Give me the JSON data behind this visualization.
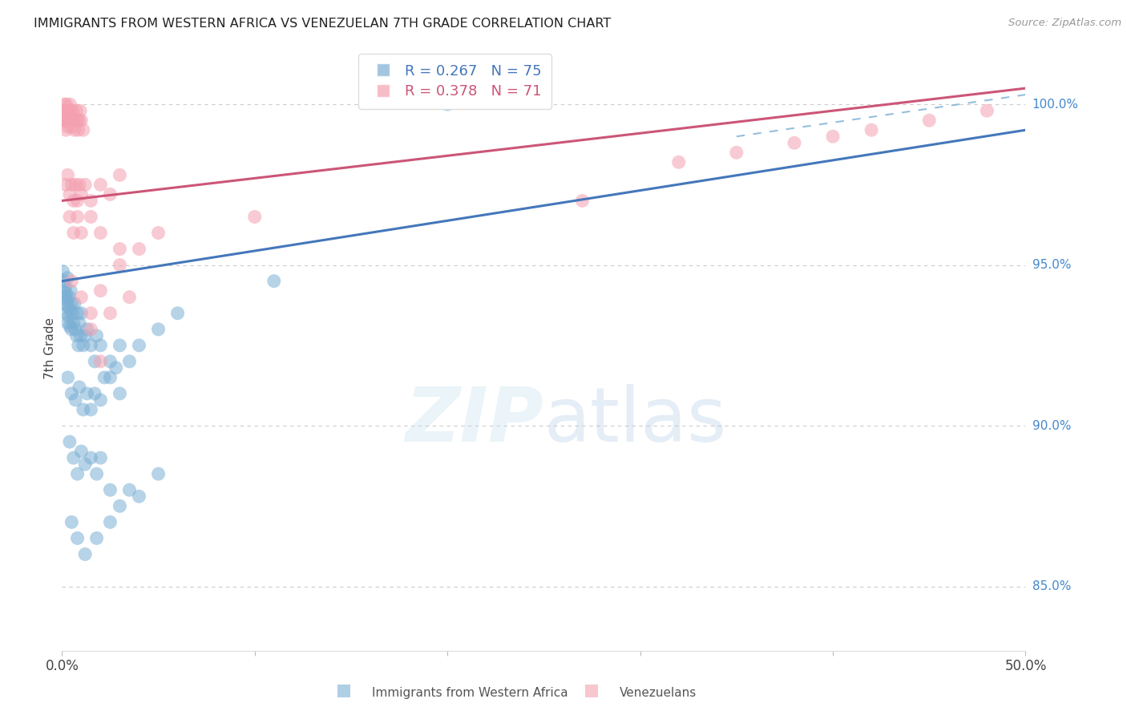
{
  "title": "IMMIGRANTS FROM WESTERN AFRICA VS VENEZUELAN 7TH GRADE CORRELATION CHART",
  "source": "Source: ZipAtlas.com",
  "ylabel": "7th Grade",
  "x_min": 0.0,
  "x_max": 50.0,
  "y_min": 83.0,
  "y_max": 101.8,
  "right_yticks": [
    85.0,
    90.0,
    95.0,
    100.0
  ],
  "blue_R": 0.267,
  "blue_N": 75,
  "pink_R": 0.378,
  "pink_N": 71,
  "blue_color": "#7BAFD4",
  "pink_color": "#F4A0B0",
  "blue_line_color": "#4477BB",
  "pink_line_color": "#CC5577",
  "blue_label": "Immigrants from Western Africa",
  "pink_label": "Venezuelans",
  "background_color": "#FFFFFF",
  "grid_color": "#CCCCCC",
  "title_color": "#222222",
  "right_label_color": "#4488CC",
  "blue_line_y_at_0": 94.5,
  "blue_line_y_at_50": 99.2,
  "pink_line_y_at_0": 97.0,
  "pink_line_y_at_50": 100.5,
  "dashed_x0": 35.0,
  "dashed_y0": 99.0,
  "dashed_x1": 50.0,
  "dashed_y1": 100.3,
  "blue_scatter": [
    [
      0.05,
      94.8
    ],
    [
      0.08,
      94.5
    ],
    [
      0.1,
      94.2
    ],
    [
      0.12,
      93.8
    ],
    [
      0.15,
      94.0
    ],
    [
      0.18,
      94.3
    ],
    [
      0.2,
      93.5
    ],
    [
      0.22,
      94.1
    ],
    [
      0.25,
      93.9
    ],
    [
      0.28,
      94.6
    ],
    [
      0.3,
      93.2
    ],
    [
      0.32,
      93.7
    ],
    [
      0.35,
      93.4
    ],
    [
      0.38,
      94.0
    ],
    [
      0.4,
      93.1
    ],
    [
      0.42,
      93.6
    ],
    [
      0.45,
      94.2
    ],
    [
      0.48,
      93.0
    ],
    [
      0.5,
      93.8
    ],
    [
      0.55,
      93.5
    ],
    [
      0.6,
      93.2
    ],
    [
      0.65,
      93.8
    ],
    [
      0.7,
      93.0
    ],
    [
      0.75,
      92.8
    ],
    [
      0.8,
      93.5
    ],
    [
      0.85,
      92.5
    ],
    [
      0.9,
      93.2
    ],
    [
      0.95,
      92.8
    ],
    [
      1.0,
      93.5
    ],
    [
      1.1,
      92.5
    ],
    [
      1.2,
      92.8
    ],
    [
      1.3,
      93.0
    ],
    [
      1.5,
      92.5
    ],
    [
      1.7,
      92.0
    ],
    [
      1.8,
      92.8
    ],
    [
      2.0,
      92.5
    ],
    [
      2.2,
      91.5
    ],
    [
      2.5,
      92.0
    ],
    [
      2.8,
      91.8
    ],
    [
      3.0,
      92.5
    ],
    [
      0.3,
      91.5
    ],
    [
      0.5,
      91.0
    ],
    [
      0.7,
      90.8
    ],
    [
      0.9,
      91.2
    ],
    [
      1.1,
      90.5
    ],
    [
      1.3,
      91.0
    ],
    [
      1.5,
      90.5
    ],
    [
      1.7,
      91.0
    ],
    [
      2.0,
      90.8
    ],
    [
      2.5,
      91.5
    ],
    [
      3.0,
      91.0
    ],
    [
      3.5,
      92.0
    ],
    [
      4.0,
      92.5
    ],
    [
      5.0,
      93.0
    ],
    [
      6.0,
      93.5
    ],
    [
      0.4,
      89.5
    ],
    [
      0.6,
      89.0
    ],
    [
      0.8,
      88.5
    ],
    [
      1.0,
      89.2
    ],
    [
      1.2,
      88.8
    ],
    [
      1.5,
      89.0
    ],
    [
      1.8,
      88.5
    ],
    [
      2.0,
      89.0
    ],
    [
      2.5,
      88.0
    ],
    [
      3.0,
      87.5
    ],
    [
      3.5,
      88.0
    ],
    [
      4.0,
      87.8
    ],
    [
      5.0,
      88.5
    ],
    [
      0.5,
      87.0
    ],
    [
      0.8,
      86.5
    ],
    [
      1.2,
      86.0
    ],
    [
      1.8,
      86.5
    ],
    [
      2.5,
      87.0
    ],
    [
      20.0,
      100.0
    ],
    [
      24.0,
      100.2
    ],
    [
      11.0,
      94.5
    ]
  ],
  "pink_scatter": [
    [
      0.05,
      99.5
    ],
    [
      0.08,
      99.8
    ],
    [
      0.1,
      99.5
    ],
    [
      0.12,
      100.0
    ],
    [
      0.15,
      99.8
    ],
    [
      0.18,
      99.5
    ],
    [
      0.2,
      99.2
    ],
    [
      0.22,
      100.0
    ],
    [
      0.25,
      99.8
    ],
    [
      0.28,
      99.5
    ],
    [
      0.3,
      99.3
    ],
    [
      0.32,
      99.7
    ],
    [
      0.35,
      99.5
    ],
    [
      0.38,
      99.8
    ],
    [
      0.4,
      99.5
    ],
    [
      0.42,
      100.0
    ],
    [
      0.45,
      99.8
    ],
    [
      0.48,
      99.5
    ],
    [
      0.5,
      99.3
    ],
    [
      0.55,
      99.8
    ],
    [
      0.6,
      99.5
    ],
    [
      0.65,
      99.2
    ],
    [
      0.7,
      99.5
    ],
    [
      0.75,
      99.8
    ],
    [
      0.8,
      99.5
    ],
    [
      0.85,
      99.2
    ],
    [
      0.9,
      99.5
    ],
    [
      0.95,
      99.8
    ],
    [
      1.0,
      99.5
    ],
    [
      1.1,
      99.2
    ],
    [
      0.2,
      97.5
    ],
    [
      0.3,
      97.8
    ],
    [
      0.4,
      97.2
    ],
    [
      0.5,
      97.5
    ],
    [
      0.6,
      97.0
    ],
    [
      0.7,
      97.5
    ],
    [
      0.8,
      97.0
    ],
    [
      0.9,
      97.5
    ],
    [
      1.0,
      97.2
    ],
    [
      1.2,
      97.5
    ],
    [
      1.5,
      97.0
    ],
    [
      2.0,
      97.5
    ],
    [
      2.5,
      97.2
    ],
    [
      3.0,
      97.8
    ],
    [
      0.4,
      96.5
    ],
    [
      0.6,
      96.0
    ],
    [
      0.8,
      96.5
    ],
    [
      1.0,
      96.0
    ],
    [
      1.5,
      96.5
    ],
    [
      2.0,
      96.0
    ],
    [
      0.5,
      94.5
    ],
    [
      1.0,
      94.0
    ],
    [
      1.5,
      93.5
    ],
    [
      2.0,
      94.2
    ],
    [
      3.0,
      95.0
    ],
    [
      4.0,
      95.5
    ],
    [
      5.0,
      96.0
    ],
    [
      1.5,
      93.0
    ],
    [
      2.5,
      93.5
    ],
    [
      3.5,
      94.0
    ],
    [
      2.0,
      92.0
    ],
    [
      3.0,
      95.5
    ],
    [
      35.0,
      98.5
    ],
    [
      38.0,
      98.8
    ],
    [
      40.0,
      99.0
    ],
    [
      32.0,
      98.2
    ],
    [
      27.0,
      97.0
    ],
    [
      42.0,
      99.2
    ],
    [
      45.0,
      99.5
    ],
    [
      48.0,
      99.8
    ],
    [
      10.0,
      96.5
    ]
  ]
}
